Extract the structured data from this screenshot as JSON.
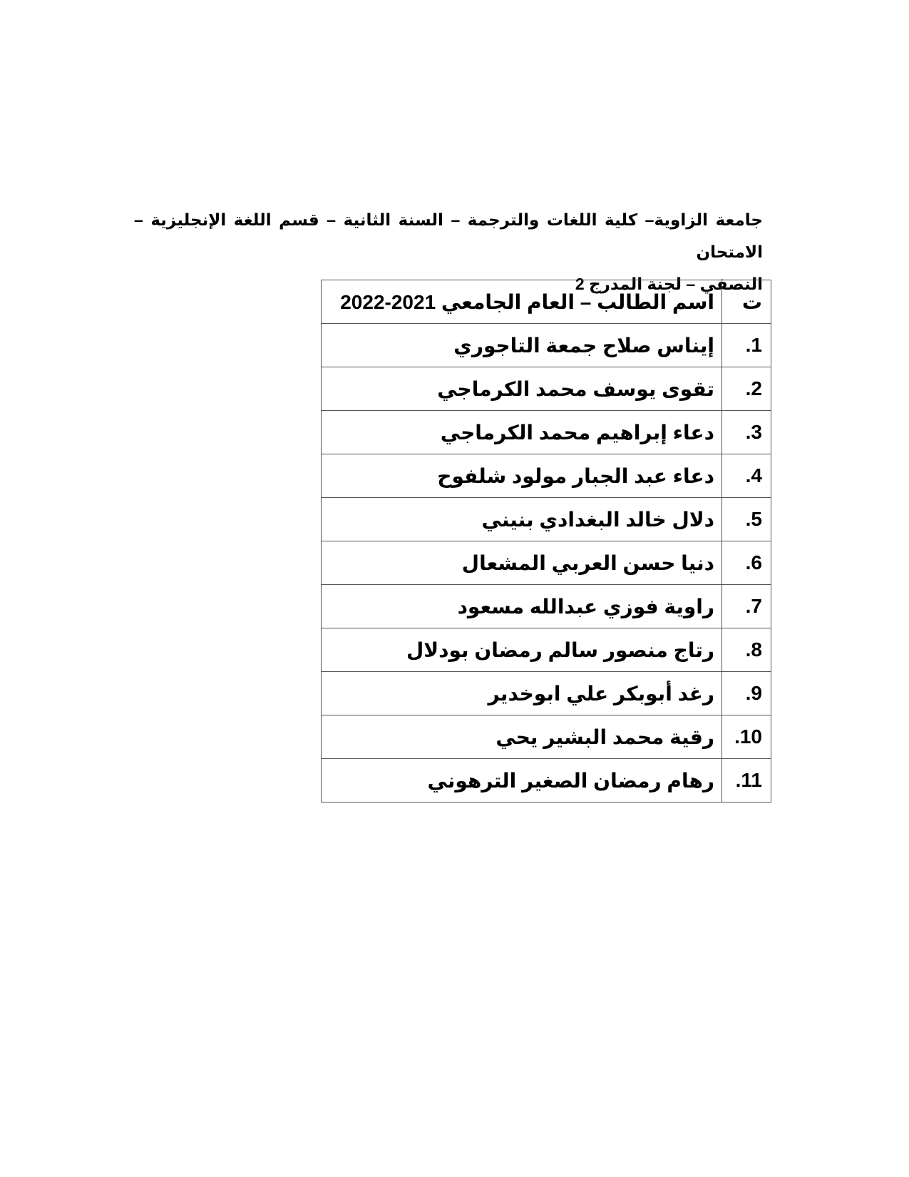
{
  "heading": {
    "line1": "جامعة الزاوية– كلية اللغات والترجمة – السنة الثانية – قسم اللغة الإنجليزية – الامتحان",
    "line2": "النصفي –  لجنة المدرج 2"
  },
  "table": {
    "header_num": "ت",
    "header_name": "اسم الطالب – العام  الجامعي 2021-2022",
    "rows": [
      {
        "num": "1.",
        "name": "إيناس صلاح جمعة التاجوري"
      },
      {
        "num": "2.",
        "name": "تقوى يوسف محمد الكرماجي"
      },
      {
        "num": "3.",
        "name": "دعاء إبراهيم محمد الكرماجي"
      },
      {
        "num": "4.",
        "name": "دعاء عبد الجبار مولود  شلفوح"
      },
      {
        "num": "5.",
        "name": "دلال خالد البغدادي بنيني"
      },
      {
        "num": "6.",
        "name": "دنيا حسن العربي المشعال"
      },
      {
        "num": "7.",
        "name": "راوية فوزي عبدالله مسعود"
      },
      {
        "num": "8.",
        "name": "رتاج منصور سالم رمضان بودلال"
      },
      {
        "num": "9.",
        "name": "رغد أبوبكر علي ابوخدير"
      },
      {
        "num": "10.",
        "name": "رقية محمد البشير يحي"
      },
      {
        "num": "11.",
        "name": "رهام رمضان الصغير الترهوني"
      }
    ]
  }
}
